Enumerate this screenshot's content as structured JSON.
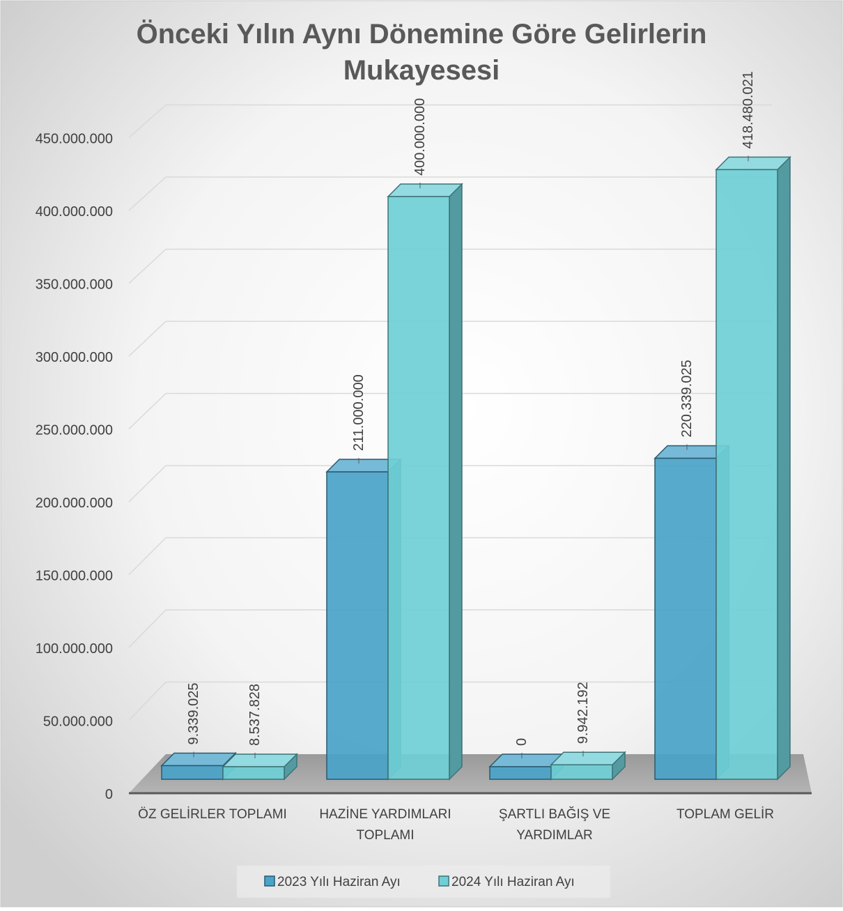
{
  "chart_data": {
    "type": "bar",
    "title": "Önceki Yılın Aynı Dönemine Göre Gelirlerin Mukayesesi",
    "title_lines": [
      "Önceki Yılın Aynı Dönemine Göre Gelirlerin",
      "Mukayesesi"
    ],
    "categories": [
      [
        "ÖZ GELİRLER TOPLAMI"
      ],
      [
        "HAZİNE YARDIMLARI",
        "TOPLAMI"
      ],
      [
        "ŞARTLI BAĞIŞ VE",
        "YARDIMLAR"
      ],
      [
        "TOPLAM GELİR"
      ]
    ],
    "series": [
      {
        "name": "2023 Yılı Haziran Ayı",
        "values": [
          9339025,
          211000000,
          0,
          220339025
        ],
        "labels": [
          "9.339.025",
          "211.000.000",
          "0",
          "220.339.025"
        ],
        "color": "#4aa3c9"
      },
      {
        "name": "2024 Yılı Haziran Ayı",
        "values": [
          8537828,
          400000000,
          9942192,
          418480021
        ],
        "labels": [
          "8.537.828",
          "400.000.000",
          "9.942.192",
          "418.480.021"
        ],
        "color": "#6fcfd6"
      }
    ],
    "yticks": [
      0,
      50000000,
      100000000,
      150000000,
      200000000,
      250000000,
      300000000,
      350000000,
      400000000,
      450000000
    ],
    "ytick_labels": [
      "0",
      "50.000.000",
      "100.000.000",
      "150.000.000",
      "200.000.000",
      "250.000.000",
      "300.000.000",
      "350.000.000",
      "400.000.000",
      "450.000.000"
    ],
    "ylim": [
      0,
      450000000
    ],
    "grid": true,
    "legend": "bottom",
    "style": "3d-clustered-column"
  }
}
